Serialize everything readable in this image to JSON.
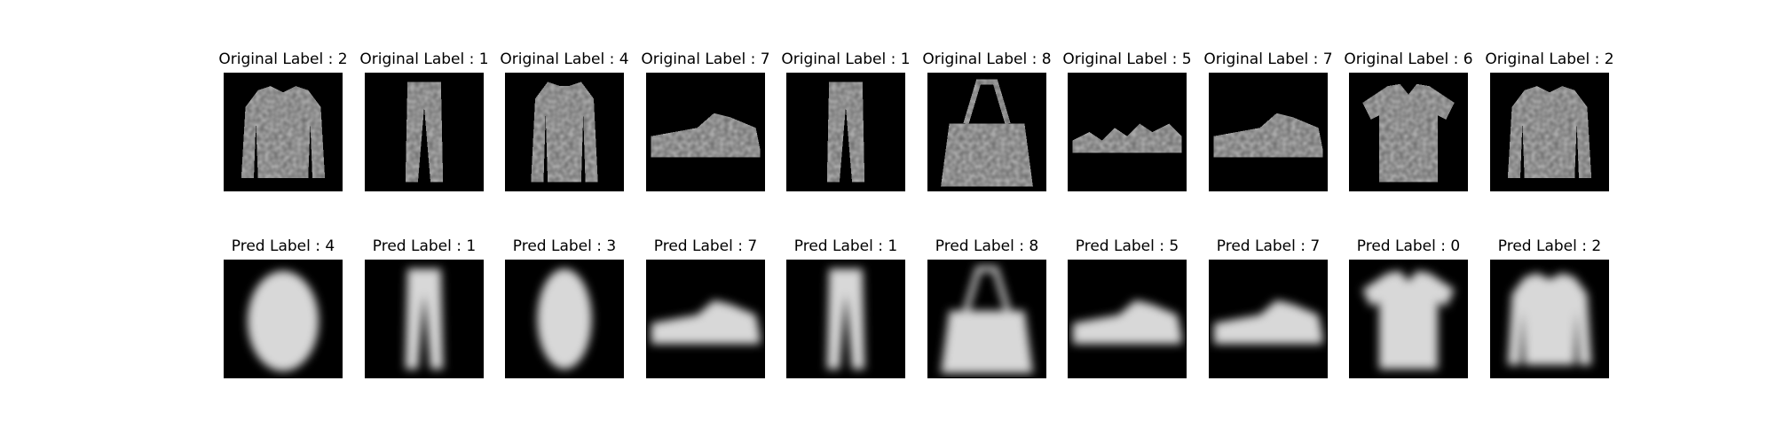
{
  "rows": [
    {
      "prefix": "Original Label",
      "panels": [
        {
          "title": "Original Label : 2",
          "picture": "pullover",
          "style": "pixel"
        },
        {
          "title": "Original Label : 1",
          "picture": "trouser",
          "style": "pixel"
        },
        {
          "title": "Original Label : 4",
          "picture": "coat",
          "style": "pixel"
        },
        {
          "title": "Original Label : 7",
          "picture": "sneaker",
          "style": "pixel"
        },
        {
          "title": "Original Label : 1",
          "picture": "trouser",
          "style": "pixel"
        },
        {
          "title": "Original Label : 8",
          "picture": "bag",
          "style": "pixel"
        },
        {
          "title": "Original Label : 5",
          "picture": "sandal",
          "style": "pixel"
        },
        {
          "title": "Original Label : 7",
          "picture": "sneaker",
          "style": "pixel"
        },
        {
          "title": "Original Label : 6",
          "picture": "shirt",
          "style": "pixel"
        },
        {
          "title": "Original Label : 2",
          "picture": "pullover",
          "style": "pixel"
        }
      ]
    },
    {
      "prefix": "Pred Label",
      "panels": [
        {
          "title": "Pred Label : 4",
          "picture": "coat-blob",
          "style": "blurred"
        },
        {
          "title": "Pred Label : 1",
          "picture": "trouser",
          "style": "blurred"
        },
        {
          "title": "Pred Label : 3",
          "picture": "dress-blob",
          "style": "blurred"
        },
        {
          "title": "Pred Label : 7",
          "picture": "sneaker",
          "style": "blurred"
        },
        {
          "title": "Pred Label : 1",
          "picture": "trouser",
          "style": "blurred"
        },
        {
          "title": "Pred Label : 8",
          "picture": "bag",
          "style": "blurred"
        },
        {
          "title": "Pred Label : 5",
          "picture": "sneaker",
          "style": "blurred"
        },
        {
          "title": "Pred Label : 7",
          "picture": "sneaker",
          "style": "blurred"
        },
        {
          "title": "Pred Label : 0",
          "picture": "shirt",
          "style": "blurred"
        },
        {
          "title": "Pred Label : 2",
          "picture": "pullover",
          "style": "blurred"
        }
      ]
    }
  ],
  "colors": {
    "background": "#ffffff",
    "image_background": "#000000"
  }
}
